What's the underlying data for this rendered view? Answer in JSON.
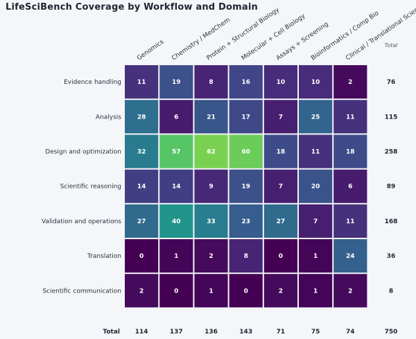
{
  "chart_data": {
    "type": "heatmap",
    "title": "LifeSciBench Coverage by Workflow and Domain",
    "columns": [
      "Genomics",
      "Chemistry / MedChem",
      "Protein + Structural Biology",
      "Molecular + Cell Biology",
      "Assays + Screening",
      "Bioinformatics / Comp Bio",
      "Clinical / Translational Science"
    ],
    "rows": [
      "Evidence handling",
      "Analysis",
      "Design and optimization",
      "Scientific reasoning",
      "Validation and operations",
      "Translation",
      "Scientific communication"
    ],
    "values": [
      [
        11,
        19,
        8,
        16,
        10,
        10,
        2
      ],
      [
        28,
        6,
        21,
        17,
        7,
        25,
        11
      ],
      [
        32,
        57,
        62,
        60,
        18,
        11,
        18
      ],
      [
        14,
        14,
        9,
        19,
        7,
        20,
        6
      ],
      [
        27,
        40,
        33,
        23,
        27,
        7,
        11
      ],
      [
        0,
        1,
        2,
        8,
        0,
        1,
        24
      ],
      [
        2,
        0,
        1,
        0,
        2,
        1,
        2
      ]
    ],
    "row_totals": [
      76,
      115,
      258,
      89,
      168,
      36,
      8
    ],
    "column_totals": [
      114,
      137,
      136,
      143,
      71,
      75,
      74
    ],
    "grand_total": 750,
    "row_total_header": "Total",
    "column_total_label": "Total",
    "colormap": "viridis",
    "value_range": [
      0,
      62
    ]
  }
}
